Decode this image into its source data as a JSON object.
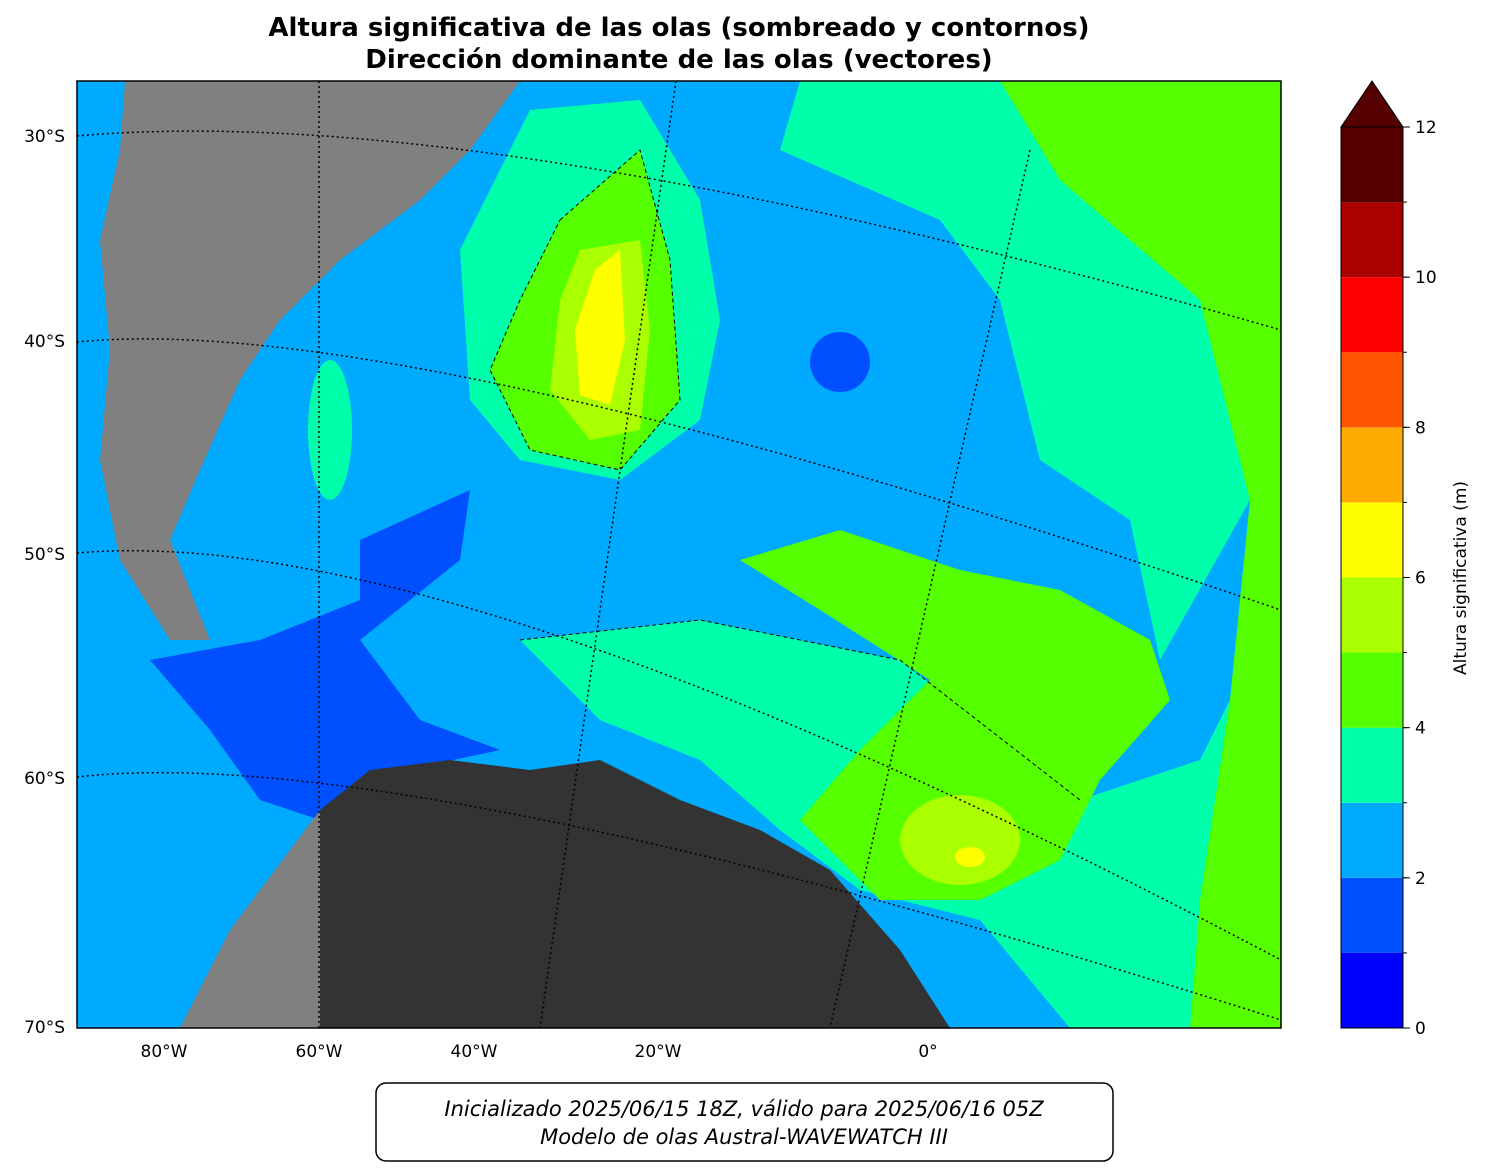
{
  "title": [
    "Altura significativa de las olas (sombreado y contornos)",
    "Dirección dominante de las olas (vectores)"
  ],
  "map": {
    "lat_labels": [
      "30°S",
      "40°S",
      "50°S",
      "60°S",
      "70°S"
    ],
    "lon_labels": [
      "80°W",
      "60°W",
      "40°W",
      "20°W",
      "0°"
    ]
  },
  "colorbar": {
    "label": "Altura significativa (m)",
    "ticks": [
      0,
      2,
      4,
      6,
      8,
      10,
      12
    ],
    "levels": [
      0,
      1,
      2,
      3,
      4,
      5,
      6,
      7,
      8,
      9,
      10,
      11,
      12
    ],
    "colors": [
      "#0000ff",
      "#0050ff",
      "#00aaff",
      "#00ffaa",
      "#55ff00",
      "#aaff00",
      "#ffff00",
      "#ffaa00",
      "#ff5500",
      "#ff0000",
      "#aa0000",
      "#550000"
    ]
  },
  "footer": [
    "Inicializado 2025/06/15 18Z, válido para 2025/06/16 05Z",
    "Modelo de olas Austral-WAVEWATCH III"
  ]
}
